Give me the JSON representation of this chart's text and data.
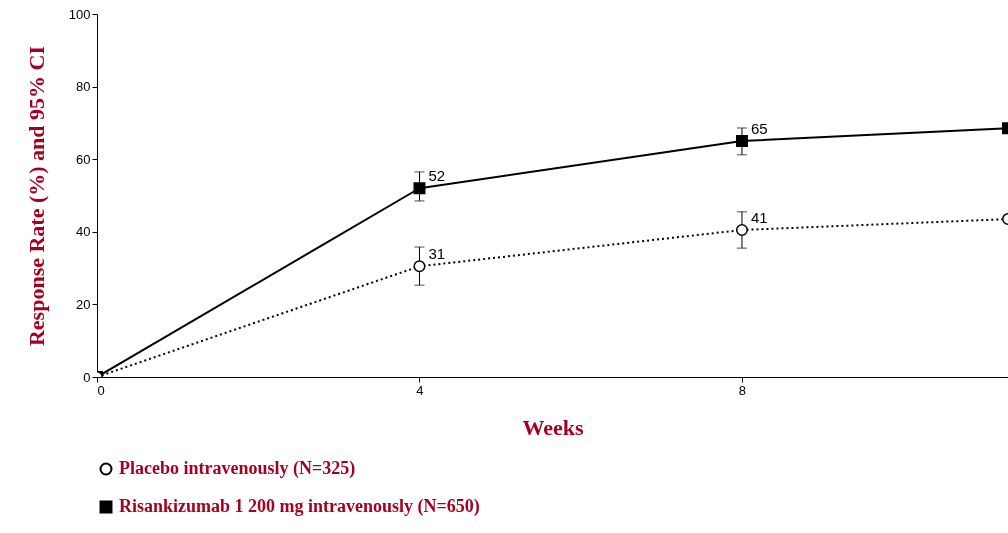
{
  "chart_data": {
    "type": "line",
    "xlabel": "Weeks",
    "ylabel": "Response Rate (%) and 95% CI",
    "x": [
      0,
      4,
      8,
      11.3
    ],
    "xlim": [
      0,
      11.3
    ],
    "xticks": [
      0,
      4,
      8
    ],
    "ylim": [
      0,
      100
    ],
    "yticks": [
      0,
      20,
      40,
      60,
      80,
      100
    ],
    "grid": false,
    "legend": "bottom",
    "series": [
      {
        "name": "Placebo intravenously (N=325)",
        "color": "#000000",
        "marker": "circle",
        "line_style": "dotted",
        "values": [
          0,
          30.5,
          40.5,
          43.5
        ],
        "errors": [
          null,
          [
            25.3,
            35.8
          ],
          [
            35.5,
            45.5
          ],
          null
        ],
        "value_labels": [
          null,
          "31",
          "41",
          null
        ]
      },
      {
        "name": "Risankizumab 1 200 mg intravenously (N=650)",
        "color": "#000000",
        "marker": "square",
        "line_style": "solid",
        "values": [
          0,
          52,
          65,
          68.5
        ],
        "errors": [
          null,
          [
            48.5,
            56.5
          ],
          [
            61.2,
            68.6
          ],
          null
        ],
        "value_labels": [
          null,
          "52",
          "65",
          null
        ]
      }
    ]
  }
}
